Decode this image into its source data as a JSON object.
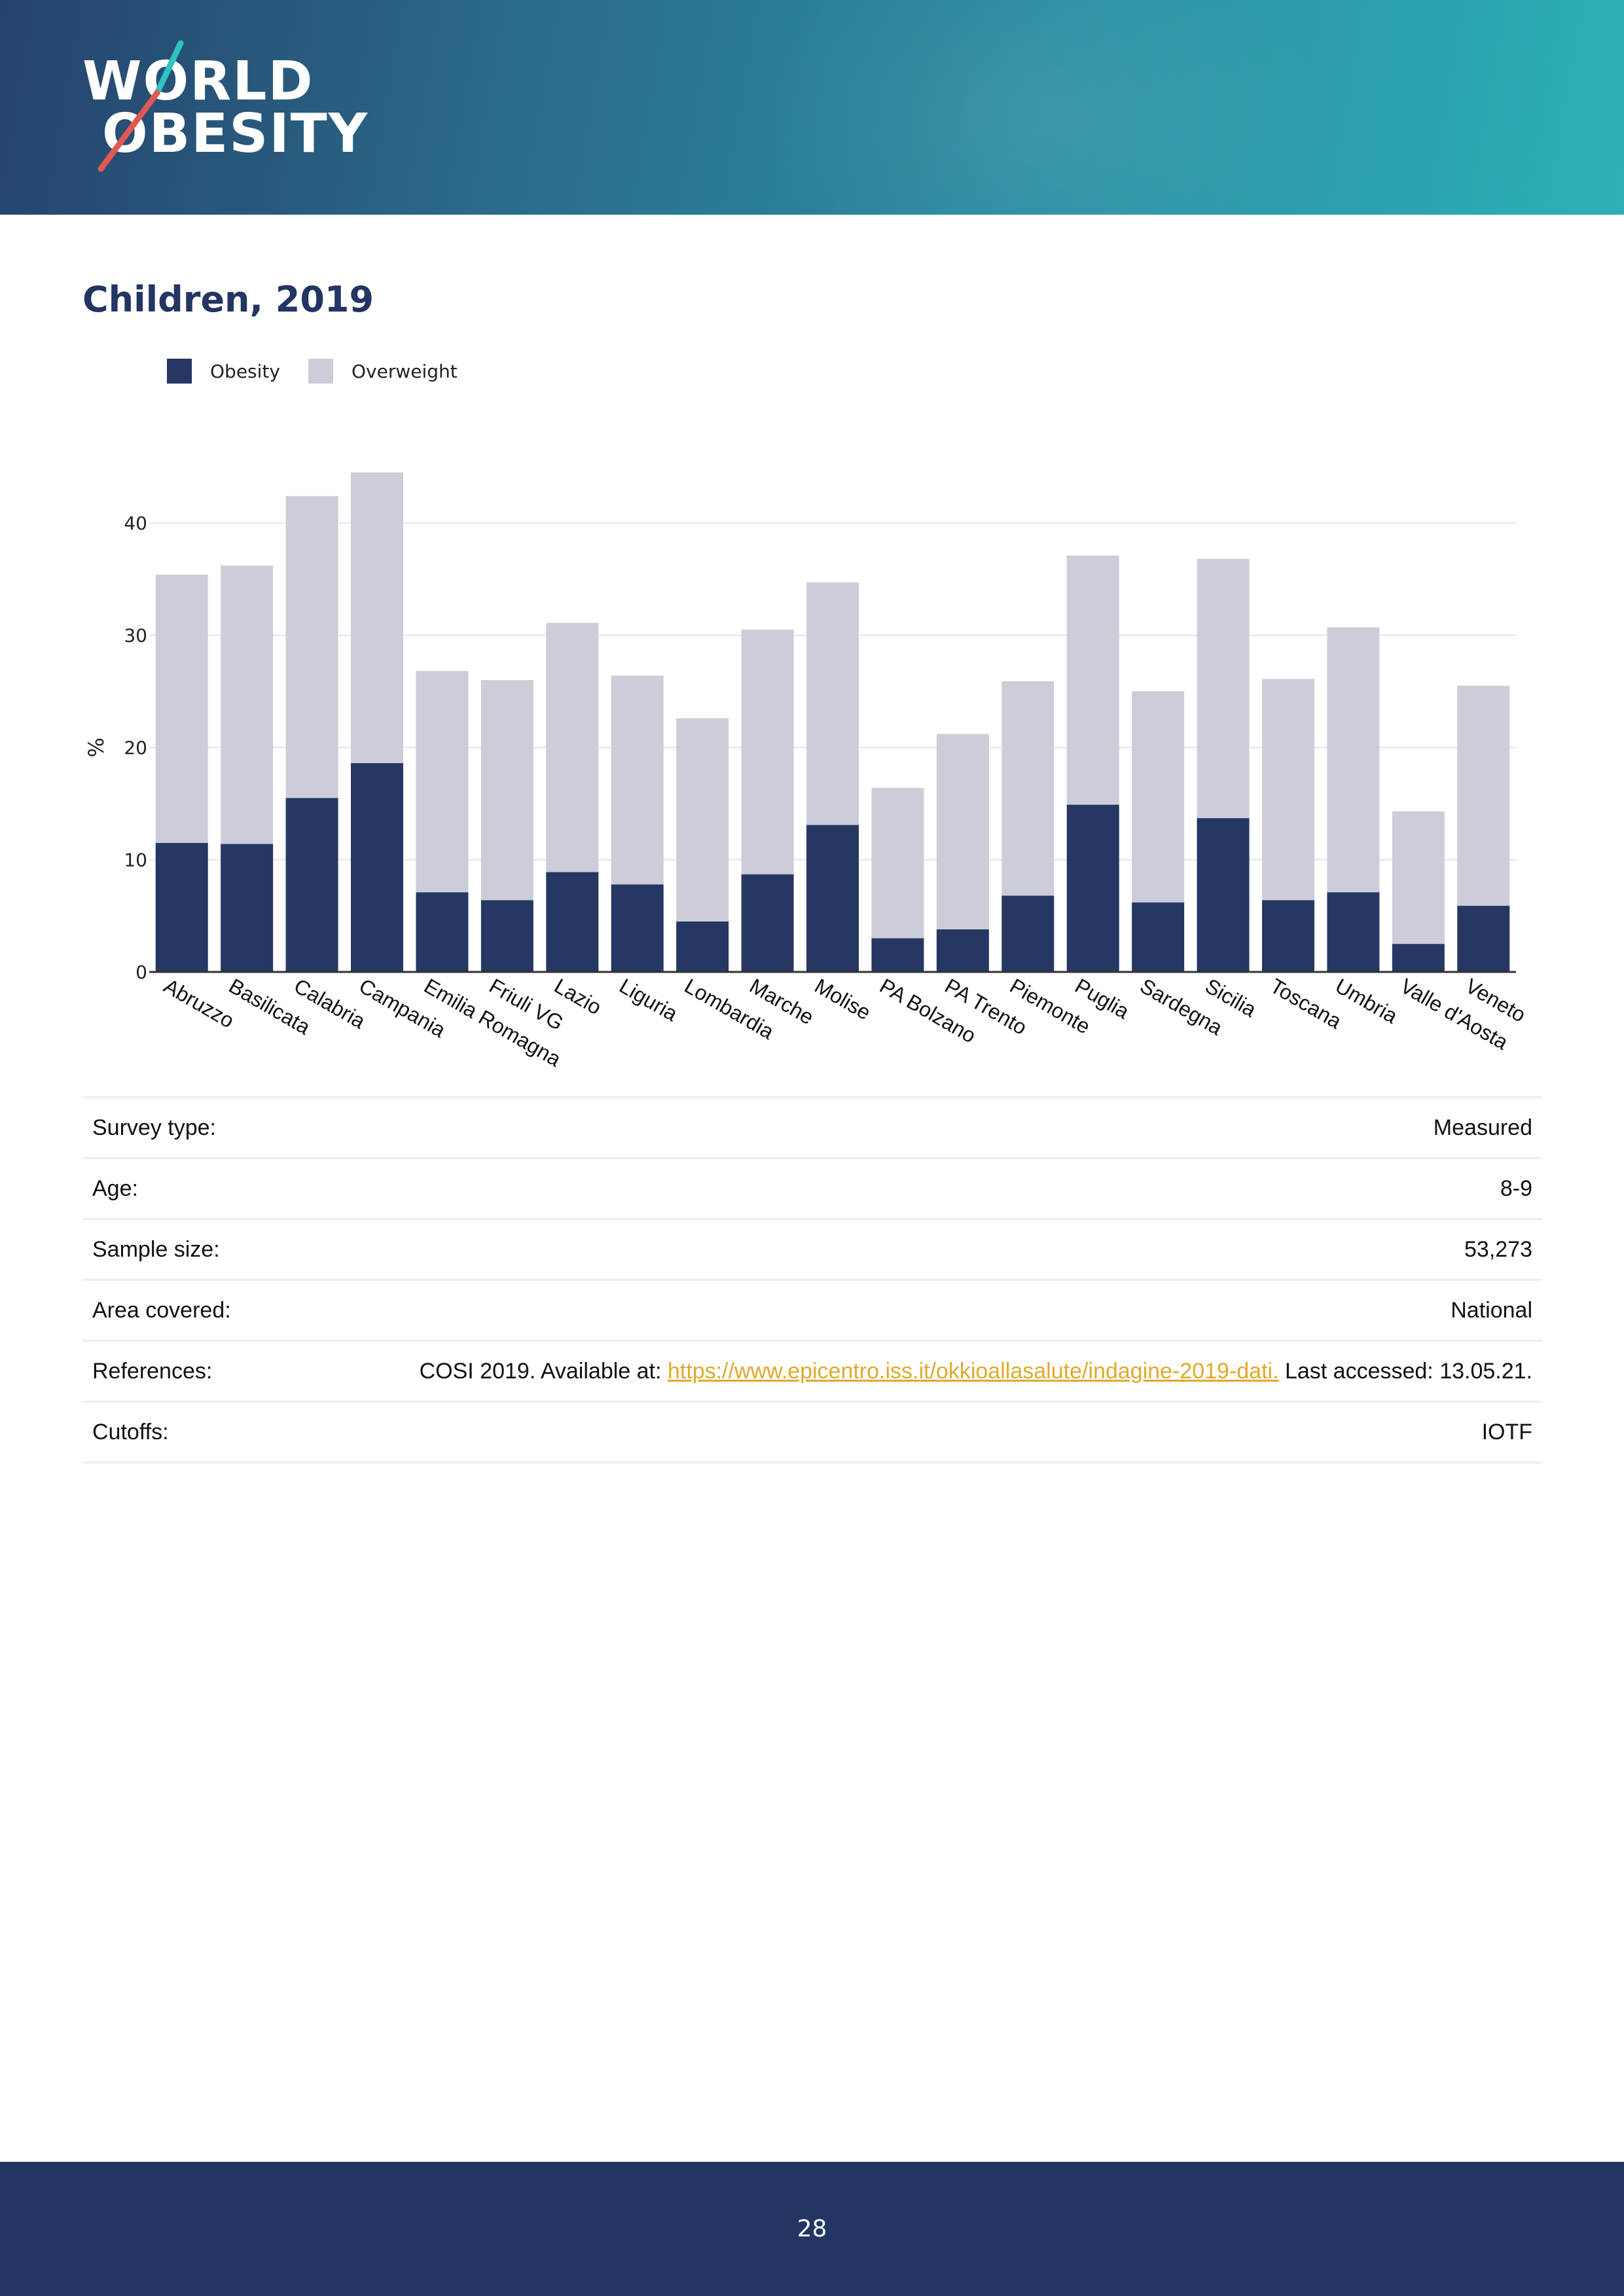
{
  "header": {
    "logo_line1": "WORLD",
    "logo_line2": "OBESITY"
  },
  "title": "Children, 2019",
  "colors": {
    "obesity": "#263763",
    "overweight": "#cccdd9",
    "accent_link": "#e0a92c"
  },
  "chart_data": {
    "type": "bar",
    "stacked": true,
    "categories": [
      "Abruzzo",
      "Basilicata",
      "Calabria",
      "Campania",
      "Emilia Romagna",
      "Friuli VG",
      "Lazio",
      "Liguria",
      "Lombardia",
      "Marche",
      "Molise",
      "PA Bolzano",
      "PA Trento",
      "Piemonte",
      "Puglia",
      "Sardegna",
      "Sicilia",
      "Toscana",
      "Umbria",
      "Valle d'Aosta",
      "Veneto"
    ],
    "series": [
      {
        "name": "Obesity",
        "color": "#263763",
        "values": [
          11.5,
          11.4,
          15.5,
          18.6,
          7.1,
          6.4,
          8.9,
          7.8,
          4.5,
          8.7,
          13.1,
          3.0,
          3.8,
          6.8,
          14.9,
          6.2,
          13.7,
          6.4,
          7.1,
          2.5,
          5.9
        ]
      },
      {
        "name": "Overweight",
        "color": "#cccdd9",
        "values": [
          23.9,
          24.8,
          26.9,
          25.9,
          19.7,
          19.6,
          22.2,
          18.6,
          18.1,
          21.8,
          21.6,
          13.4,
          17.4,
          19.1,
          22.2,
          18.8,
          23.1,
          19.7,
          23.6,
          11.8,
          19.6
        ]
      }
    ],
    "xlabel": "",
    "ylabel": "%",
    "yticks": [
      0,
      10,
      20,
      30,
      40
    ],
    "ylim": [
      0,
      45
    ],
    "grid": true,
    "legend": "top-left"
  },
  "table": {
    "rows": [
      {
        "label": "Survey type:",
        "value": "Measured"
      },
      {
        "label": "Age:",
        "value": "8-9"
      },
      {
        "label": "Sample size:",
        "value": "53,273"
      },
      {
        "label": "Area covered:",
        "value": "National"
      },
      {
        "label": "References:",
        "value_prefix": "COSI 2019. Available at: ",
        "link": "https://www.epicentro.iss.it/okkioallasalute/indagine-2019-dati.",
        "value_suffix": " Last accessed: 13.05.21."
      },
      {
        "label": "Cutoffs:",
        "value": "IOTF"
      }
    ]
  },
  "footer": {
    "page_number": "28"
  }
}
